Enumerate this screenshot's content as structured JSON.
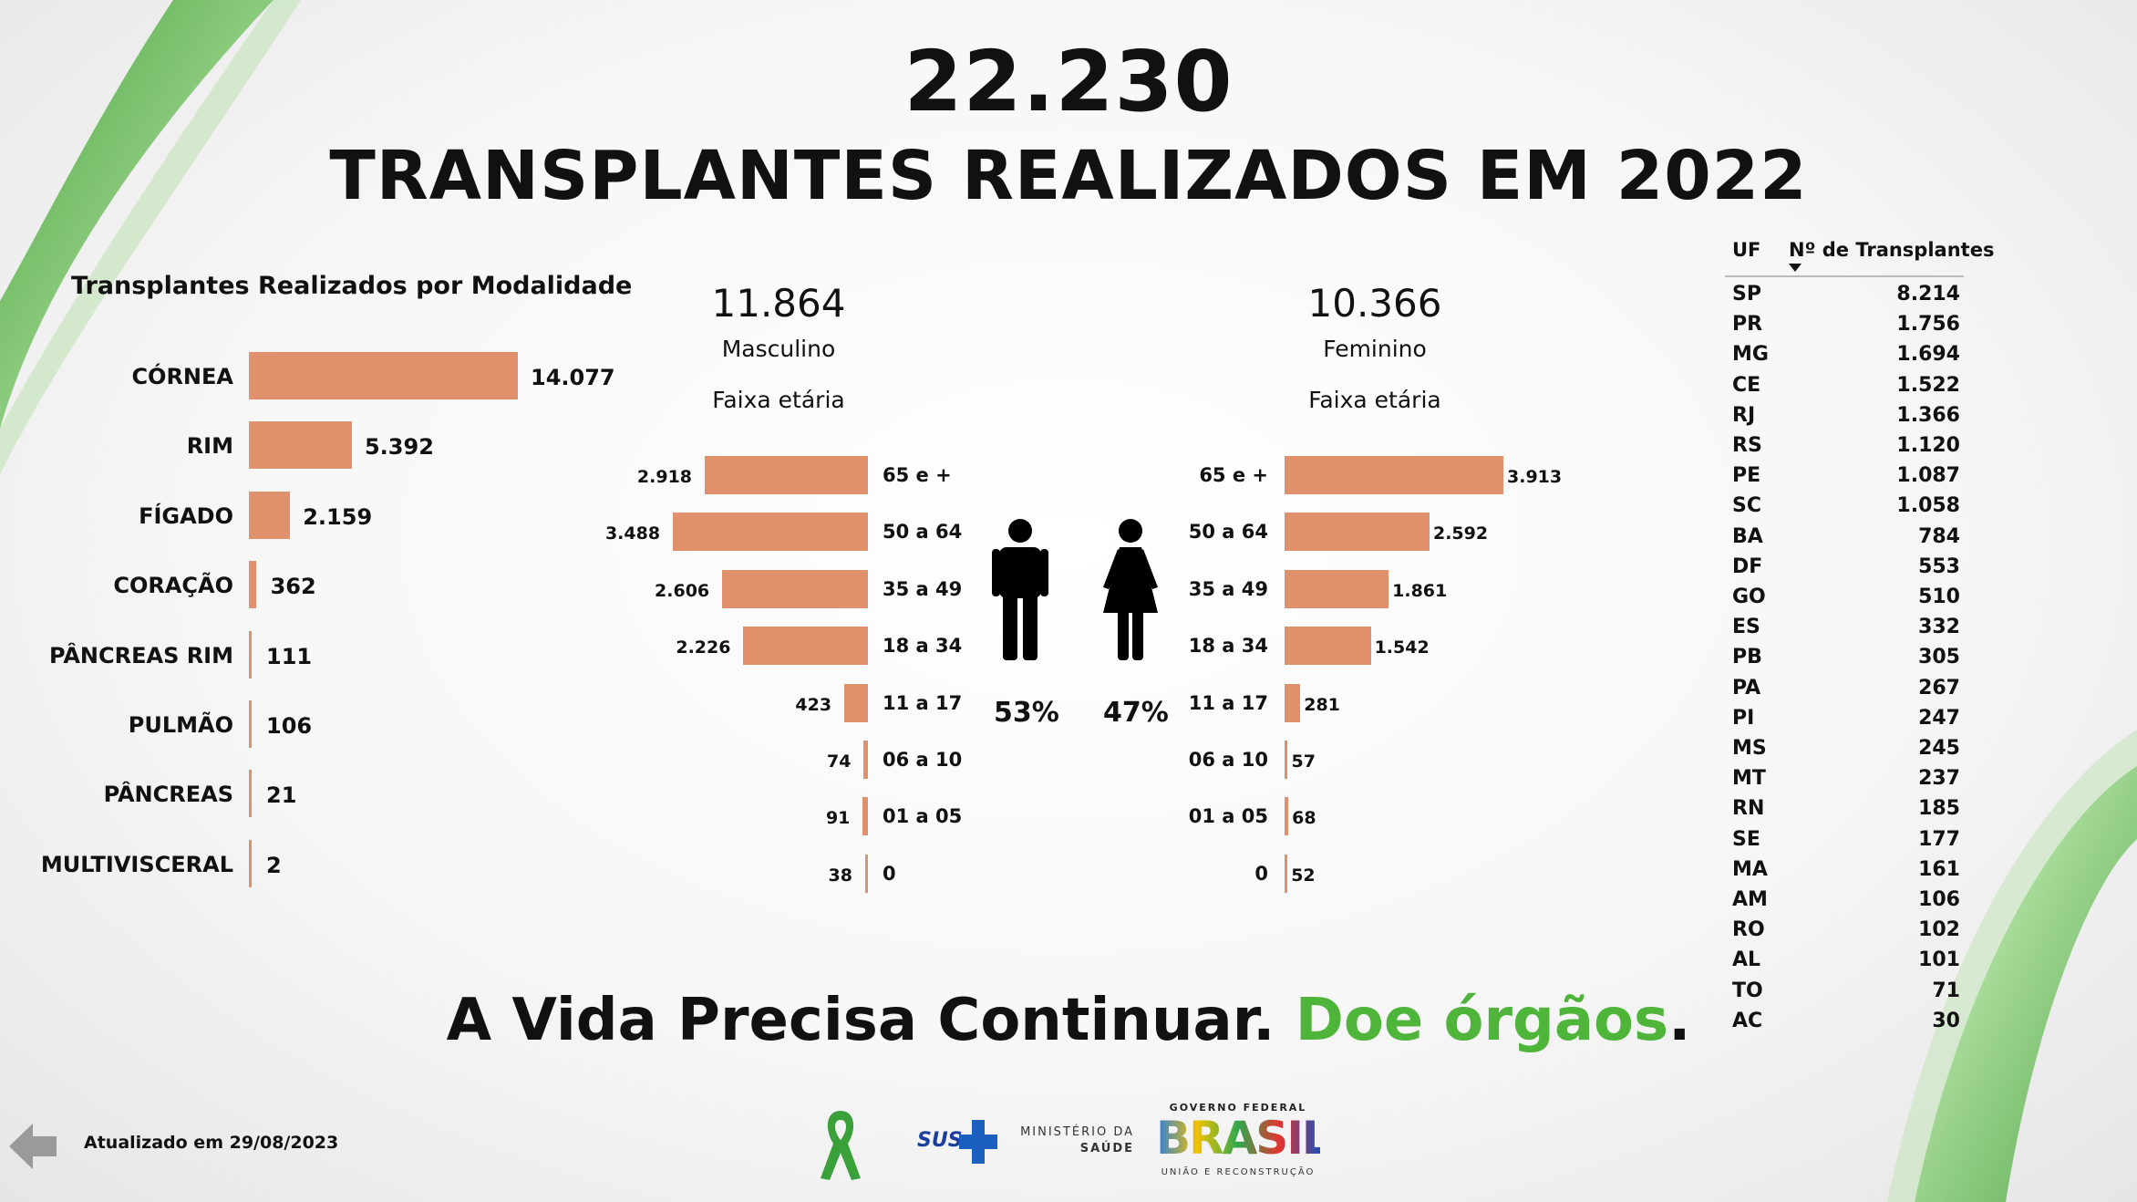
{
  "header": {
    "total": "22.230",
    "title": "TRANSPLANTES REALIZADOS EM 2022"
  },
  "chart_data": [
    {
      "type": "bar",
      "orientation": "horizontal",
      "title": "Transplantes Realizados por Modalidade",
      "categories": [
        "CÓRNEA",
        "RIM",
        "FÍGADO",
        "CORAÇÃO",
        "PÂNCREAS RIM",
        "PULMÃO",
        "PÂNCREAS",
        "MULTIVISCERAL"
      ],
      "values": [
        14077,
        5392,
        2159,
        362,
        111,
        106,
        21,
        2
      ],
      "value_labels": [
        "14.077",
        "5.392",
        "2.159",
        "362",
        "111",
        "106",
        "21",
        "2"
      ],
      "color": "#e0906a"
    },
    {
      "type": "bar",
      "orientation": "horizontal",
      "title": "Faixa etária",
      "categories": [
        "65 e +",
        "50 a 64",
        "35 a 49",
        "18 a 34",
        "11 a 17",
        "06 a 10",
        "01 a 05",
        "0"
      ],
      "series": [
        {
          "name": "Masculino",
          "total": "11.864",
          "percent": "53%",
          "values": [
            2918,
            3488,
            2606,
            2226,
            423,
            74,
            91,
            38
          ],
          "value_labels": [
            "2.918",
            "3.488",
            "2.606",
            "2.226",
            "423",
            "74",
            "91",
            "38"
          ]
        },
        {
          "name": "Feminino",
          "total": "10.366",
          "percent": "47%",
          "values": [
            3913,
            2592,
            1861,
            1542,
            281,
            57,
            68,
            52
          ],
          "value_labels": [
            "3.913",
            "2.592",
            "1.861",
            "1.542",
            "281",
            "57",
            "68",
            "52"
          ]
        }
      ],
      "color": "#e0906a"
    },
    {
      "type": "table",
      "columns": [
        "UF",
        "Nº de Transplantes"
      ],
      "sort_indicator": "descending",
      "rows": [
        [
          "SP",
          "8.214"
        ],
        [
          "PR",
          "1.756"
        ],
        [
          "MG",
          "1.694"
        ],
        [
          "CE",
          "1.522"
        ],
        [
          "RJ",
          "1.366"
        ],
        [
          "RS",
          "1.120"
        ],
        [
          "PE",
          "1.087"
        ],
        [
          "SC",
          "1.058"
        ],
        [
          "BA",
          "784"
        ],
        [
          "DF",
          "553"
        ],
        [
          "GO",
          "510"
        ],
        [
          "ES",
          "332"
        ],
        [
          "PB",
          "305"
        ],
        [
          "PA",
          "267"
        ],
        [
          "PI",
          "247"
        ],
        [
          "MS",
          "245"
        ],
        [
          "MT",
          "237"
        ],
        [
          "RN",
          "185"
        ],
        [
          "SE",
          "177"
        ],
        [
          "MA",
          "161"
        ],
        [
          "AM",
          "106"
        ],
        [
          "RO",
          "102"
        ],
        [
          "AL",
          "101"
        ],
        [
          "TO",
          "71"
        ],
        [
          "AC",
          "30"
        ]
      ]
    }
  ],
  "slogan": {
    "part1": "A Vida Precisa Continuar. ",
    "part2": "Doe órgãos",
    "part3": "."
  },
  "footer": {
    "updated": "Atualizado em 29/08/2023",
    "back_icon": "arrow-left-icon",
    "logos": {
      "ribbon": "green-ribbon-icon",
      "sus": "SUS",
      "ministerio_line1": "MINISTÉRIO DA",
      "ministerio_line2": "SAÚDE",
      "gov_top": "GOVERNO FEDERAL",
      "gov_main": "BRASIL",
      "gov_bottom": "UNIÃO E RECONSTRUÇÃO"
    }
  },
  "colors": {
    "bar": "#e0906a",
    "accent_green": "#4fb43a",
    "text": "#111111"
  }
}
